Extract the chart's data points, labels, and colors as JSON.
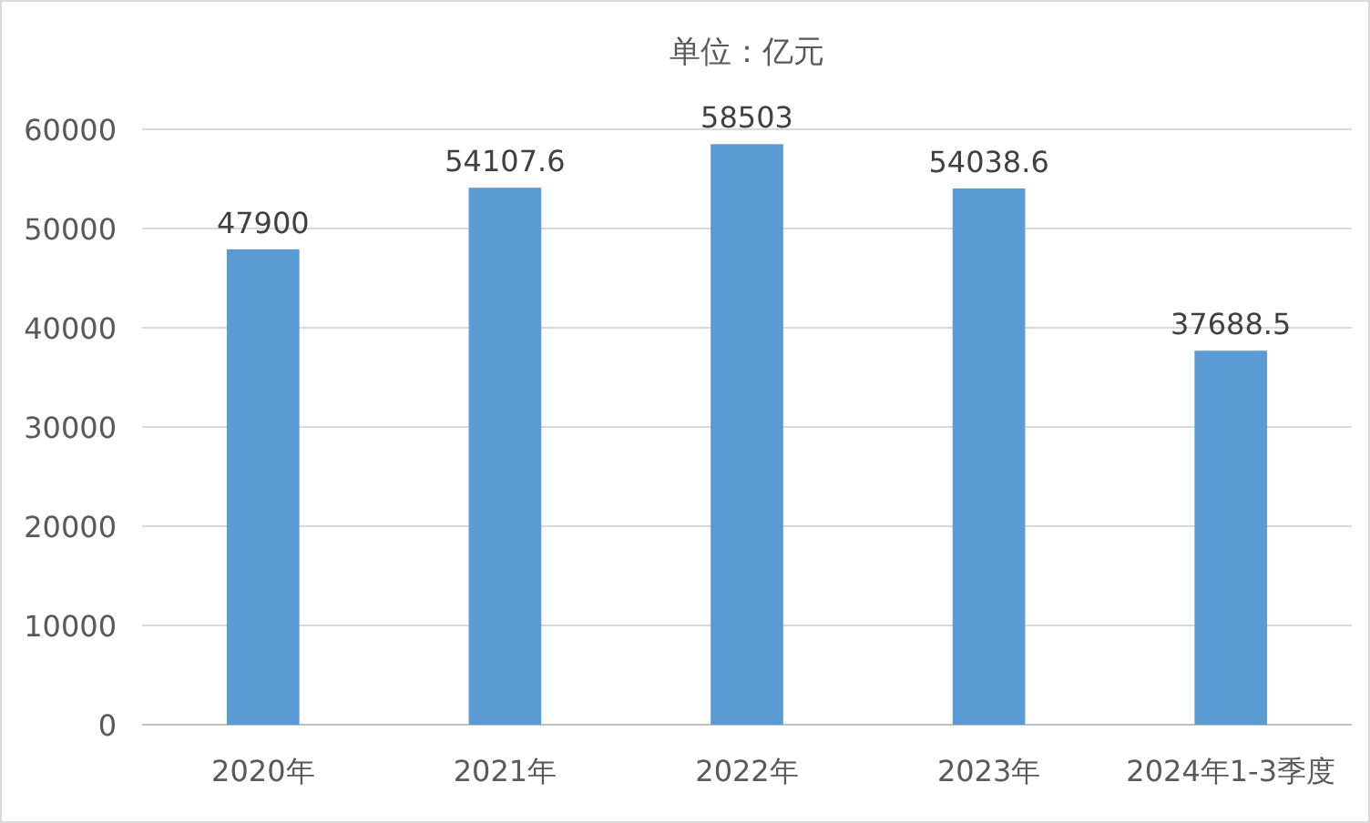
{
  "chart_data": {
    "type": "bar",
    "title": "单位：亿元",
    "categories": [
      "2020年",
      "2021年",
      "2022年",
      "2023年",
      "2024年1-3季度"
    ],
    "values": [
      47900,
      54107.6,
      58503,
      54038.6,
      37688.5
    ],
    "color": "#5b9bd5",
    "ylim": [
      0,
      60000
    ],
    "yticks": [
      0,
      10000,
      20000,
      30000,
      40000,
      50000,
      60000
    ],
    "grid": "y",
    "data_labels": true
  }
}
